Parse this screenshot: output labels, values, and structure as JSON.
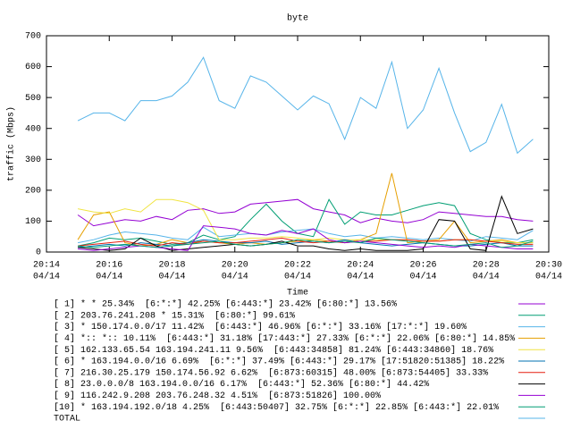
{
  "chart_data": {
    "type": "line",
    "title": "byte",
    "xlabel": "Time",
    "ylabel": "traffic (Mbps)",
    "x": [
      "20:15:00",
      "20:15:30",
      "20:16:00",
      "20:16:30",
      "20:17:00",
      "20:17:30",
      "20:18:00",
      "20:18:30",
      "20:19:00",
      "20:19:30",
      "20:20:00",
      "20:20:30",
      "20:21:00",
      "20:21:30",
      "20:22:00",
      "20:22:30",
      "20:23:00",
      "20:23:30",
      "20:24:00",
      "20:24:30",
      "20:25:00",
      "20:25:30",
      "20:26:00",
      "20:26:30",
      "20:27:00",
      "20:27:30",
      "20:28:00",
      "20:28:30",
      "20:29:00",
      "20:29:30"
    ],
    "xlim": [
      "20:14",
      "20:30"
    ],
    "xticks": [
      {
        "value": "20:14",
        "label": [
          "20:14",
          "04/14"
        ]
      },
      {
        "value": "20:16",
        "label": [
          "20:16",
          "04/14"
        ]
      },
      {
        "value": "20:18",
        "label": [
          "20:18",
          "04/14"
        ]
      },
      {
        "value": "20:20",
        "label": [
          "20:20",
          "04/14"
        ]
      },
      {
        "value": "20:22",
        "label": [
          "20:22",
          "04/14"
        ]
      },
      {
        "value": "20:24",
        "label": [
          "20:24",
          "04/14"
        ]
      },
      {
        "value": "20:26",
        "label": [
          "20:26",
          "04/14"
        ]
      },
      {
        "value": "20:28",
        "label": [
          "20:28",
          "04/14"
        ]
      },
      {
        "value": "20:30",
        "label": [
          "20:30",
          "04/14"
        ]
      }
    ],
    "ylim": [
      0,
      700
    ],
    "yticks": [
      0,
      100,
      200,
      300,
      400,
      500,
      600,
      700
    ],
    "series": [
      {
        "name": "[ 1] * * 25.34%  [6:*:*] 42.25% [6:443:*] 23.42% [6:80:*] 13.56%",
        "color": "#9400d3",
        "values": [
          120,
          85,
          95,
          105,
          100,
          115,
          105,
          135,
          140,
          125,
          130,
          155,
          160,
          165,
          170,
          140,
          130,
          120,
          95,
          110,
          100,
          95,
          105,
          130,
          125,
          120,
          115,
          115,
          105,
          100
        ]
      },
      {
        "name": "[ 2] 203.76.241.208 * 15.31%  [6:80:*] 99.61%",
        "color": "#009e73",
        "values": [
          20,
          30,
          45,
          40,
          45,
          35,
          25,
          30,
          55,
          40,
          50,
          105,
          155,
          100,
          60,
          50,
          170,
          90,
          130,
          120,
          120,
          135,
          150,
          160,
          150,
          60,
          40,
          30,
          30,
          40
        ]
      },
      {
        "name": "[ 3] * 150.174.0.0/17 11.42%  [6:443:*] 46.96% [6:*:*] 33.16% [17:*:*] 19.60%",
        "color": "#56b4e9",
        "values": [
          30,
          40,
          55,
          65,
          60,
          55,
          45,
          40,
          80,
          50,
          55,
          60,
          55,
          65,
          70,
          75,
          60,
          50,
          55,
          45,
          50,
          45,
          40,
          45,
          40,
          35,
          50,
          45,
          40,
          70
        ]
      },
      {
        "name": "[ 4] *:: *:: 10.11%  [6:443:*] 31.18% [17:443:*] 27.33% [6:*:*] 22.06% [6:80:*] 14.85%",
        "color": "#e69f00",
        "values": [
          40,
          120,
          130,
          30,
          20,
          25,
          40,
          30,
          35,
          30,
          25,
          30,
          25,
          30,
          35,
          40,
          35,
          30,
          40,
          60,
          255,
          30,
          35,
          40,
          100,
          30,
          35,
          40,
          30,
          30
        ]
      },
      {
        "name": "[ 5] 162.133.65.54 163.194.241.11 9.56%  [6:443:34858] 81.24% [6:443:34860] 18.76%",
        "color": "#f0e442",
        "values": [
          140,
          130,
          125,
          140,
          130,
          170,
          170,
          160,
          135,
          40,
          40,
          45,
          45,
          50,
          45,
          40,
          45,
          40,
          40,
          40,
          40,
          40,
          35,
          35,
          40,
          40,
          35,
          35,
          30,
          30
        ]
      },
      {
        "name": "[ 6] * 163.194.0.0/16 6.69%  [6:*:*] 37.49% [6:443:*] 29.17% [17:51820:51385] 18.22%",
        "color": "#0072b2",
        "values": [
          15,
          20,
          25,
          20,
          30,
          25,
          20,
          30,
          40,
          35,
          30,
          30,
          35,
          25,
          30,
          35,
          30,
          40,
          30,
          25,
          20,
          25,
          30,
          25,
          20,
          20,
          25,
          30,
          20,
          20
        ]
      },
      {
        "name": "[ 7] 216.30.25.179 150.174.56.92 6.62%  [6:873:60315] 48.00% [6:873:54405] 33.33%",
        "color": "#e51e10",
        "values": [
          20,
          25,
          30,
          35,
          25,
          20,
          30,
          25,
          35,
          30,
          30,
          35,
          40,
          45,
          35,
          30,
          35,
          30,
          35,
          35,
          40,
          40,
          35,
          35,
          40,
          40,
          35,
          30,
          25,
          25
        ]
      },
      {
        "name": "[ 8] 23.0.0.0/8 163.194.0.0/16 6.17%  [6:443:*] 52.36% [6:80:*] 44.42%",
        "color": "#000000",
        "values": [
          15,
          10,
          5,
          10,
          45,
          20,
          5,
          10,
          15,
          20,
          25,
          20,
          25,
          35,
          20,
          20,
          10,
          5,
          10,
          5,
          5,
          5,
          10,
          105,
          100,
          10,
          5,
          180,
          60,
          75
        ]
      },
      {
        "name": "[ 9] 116.242.9.208 203.76.248.32 4.51%  [6:873:51826] 100.00%",
        "color": "#9400d3",
        "values": [
          10,
          5,
          10,
          15,
          20,
          15,
          10,
          5,
          85,
          80,
          75,
          60,
          55,
          70,
          60,
          75,
          40,
          30,
          35,
          30,
          25,
          20,
          15,
          20,
          15,
          25,
          20,
          15,
          10,
          10
        ]
      },
      {
        "name": "[10] * 163.194.192.0/18 4.25%  [6:443:50407] 32.75% [6:*:*] 22.85% [6:443:*] 22.01%",
        "color": "#009e73",
        "values": [
          20,
          15,
          20,
          25,
          20,
          15,
          20,
          25,
          30,
          35,
          25,
          20,
          25,
          30,
          40,
          35,
          30,
          35,
          30,
          45,
          40,
          35,
          30,
          25,
          20,
          25,
          30,
          15,
          20,
          35
        ]
      },
      {
        "name": "TOTAL",
        "color": "#56b4e9",
        "values": [
          425,
          450,
          450,
          425,
          490,
          490,
          505,
          550,
          630,
          490,
          465,
          570,
          550,
          505,
          460,
          505,
          480,
          365,
          500,
          465,
          615,
          400,
          460,
          595,
          450,
          325,
          355,
          478,
          320,
          365
        ]
      }
    ]
  }
}
